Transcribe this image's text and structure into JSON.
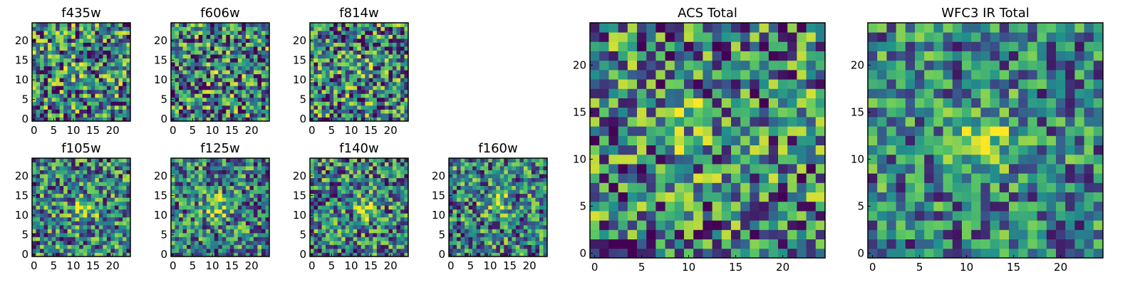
{
  "chart_data": [
    {
      "id": "f435w",
      "type": "heatmap",
      "title": "f435w",
      "grid_size": 25,
      "xlim": [
        0,
        24
      ],
      "ylim": [
        0,
        24
      ],
      "seed": 11,
      "blob": [
        11,
        12,
        0.2
      ],
      "x_ticks": [
        "0",
        "5",
        "10",
        "15",
        "20"
      ],
      "y_ticks": [
        "0",
        "5",
        "10",
        "15",
        "20"
      ]
    },
    {
      "id": "f606w",
      "type": "heatmap",
      "title": "f606w",
      "grid_size": 25,
      "xlim": [
        0,
        24
      ],
      "ylim": [
        0,
        24
      ],
      "seed": 23,
      "blob": [
        12,
        12,
        0.25
      ],
      "x_ticks": [
        "0",
        "5",
        "10",
        "15",
        "20"
      ],
      "y_ticks": [
        "0",
        "5",
        "10",
        "15",
        "20"
      ]
    },
    {
      "id": "f814w",
      "type": "heatmap",
      "title": "f814w",
      "grid_size": 25,
      "xlim": [
        0,
        24
      ],
      "ylim": [
        0,
        24
      ],
      "seed": 37,
      "blob": [
        12,
        13,
        0.25
      ],
      "x_ticks": [
        "0",
        "5",
        "10",
        "15",
        "20"
      ],
      "y_ticks": [
        "0",
        "5",
        "10",
        "15",
        "20"
      ]
    },
    {
      "id": "f105w",
      "type": "heatmap",
      "title": "f105w",
      "grid_size": 25,
      "xlim": [
        0,
        24
      ],
      "ylim": [
        0,
        24
      ],
      "seed": 41,
      "blob": [
        13,
        12,
        0.6
      ],
      "x_ticks": [
        "0",
        "5",
        "10",
        "15",
        "20"
      ],
      "y_ticks": [
        "0",
        "5",
        "10",
        "15",
        "20"
      ]
    },
    {
      "id": "f125w",
      "type": "heatmap",
      "title": "f125w",
      "grid_size": 25,
      "xlim": [
        0,
        24
      ],
      "ylim": [
        0,
        24
      ],
      "seed": 53,
      "blob": [
        11,
        12,
        0.65
      ],
      "x_ticks": [
        "0",
        "5",
        "10",
        "15",
        "20"
      ],
      "y_ticks": [
        "0",
        "5",
        "10",
        "15",
        "20"
      ]
    },
    {
      "id": "f140w",
      "type": "heatmap",
      "title": "f140w",
      "grid_size": 25,
      "xlim": [
        0,
        24
      ],
      "ylim": [
        0,
        24
      ],
      "seed": 67,
      "blob": [
        14,
        12,
        0.6
      ],
      "x_ticks": [
        "0",
        "5",
        "10",
        "15",
        "20"
      ],
      "y_ticks": [
        "0",
        "5",
        "10",
        "15",
        "20"
      ]
    },
    {
      "id": "f160w",
      "type": "heatmap",
      "title": "f160w",
      "grid_size": 25,
      "xlim": [
        0,
        24
      ],
      "ylim": [
        0,
        24
      ],
      "seed": 79,
      "blob": [
        12,
        13,
        0.6
      ],
      "x_ticks": [
        "0",
        "5",
        "10",
        "15",
        "20"
      ],
      "y_ticks": [
        "0",
        "5",
        "10",
        "15",
        "20"
      ]
    },
    {
      "id": "acs-total",
      "type": "heatmap",
      "title": "ACS Total",
      "grid_size": 25,
      "xlim": [
        0,
        24
      ],
      "ylim": [
        0,
        24
      ],
      "seed": 97,
      "blob": [
        10,
        13,
        0.35
      ],
      "x_ticks": [
        "0",
        "5",
        "10",
        "15",
        "20"
      ],
      "y_ticks": [
        "0",
        "5",
        "10",
        "15",
        "20"
      ]
    },
    {
      "id": "wfc3-ir-total",
      "type": "heatmap",
      "title": "WFC3 IR Total",
      "grid_size": 25,
      "xlim": [
        0,
        24
      ],
      "ylim": [
        0,
        24
      ],
      "seed": 131,
      "blob": [
        12,
        12,
        0.9
      ],
      "x_ticks": [
        "0",
        "5",
        "10",
        "15",
        "20"
      ],
      "y_ticks": [
        "0",
        "5",
        "10",
        "15",
        "20"
      ]
    }
  ],
  "colormap": [
    "#440154",
    "#3b528b",
    "#21918c",
    "#5ec962",
    "#fde725"
  ]
}
